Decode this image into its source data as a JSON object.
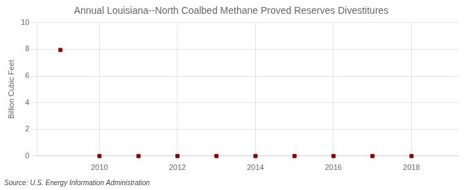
{
  "chart_data": {
    "type": "scatter",
    "title": "Annual Louisiana--North Coalbed Methane Proved Reserves Divestitures",
    "ylabel": "Billion Cubic Feet",
    "annotations": [
      "Source: U.S. Energy Information Administration"
    ],
    "x": [
      2009,
      2010,
      2011,
      2012,
      2013,
      2014,
      2015,
      2016,
      2017,
      2018
    ],
    "values": [
      7.95,
      0.0,
      0.0,
      0.0,
      0.0,
      0.0,
      0.0,
      0.0,
      0.0,
      0.0
    ],
    "xlim": [
      2008.4,
      2019.2
    ],
    "ylim": [
      0,
      10
    ],
    "xticks": [
      2010,
      2012,
      2014,
      2016,
      2018
    ],
    "yticks": [
      0,
      2,
      4,
      6,
      8,
      10
    ],
    "color": "#8b0000",
    "marker": "square",
    "grid": true
  }
}
